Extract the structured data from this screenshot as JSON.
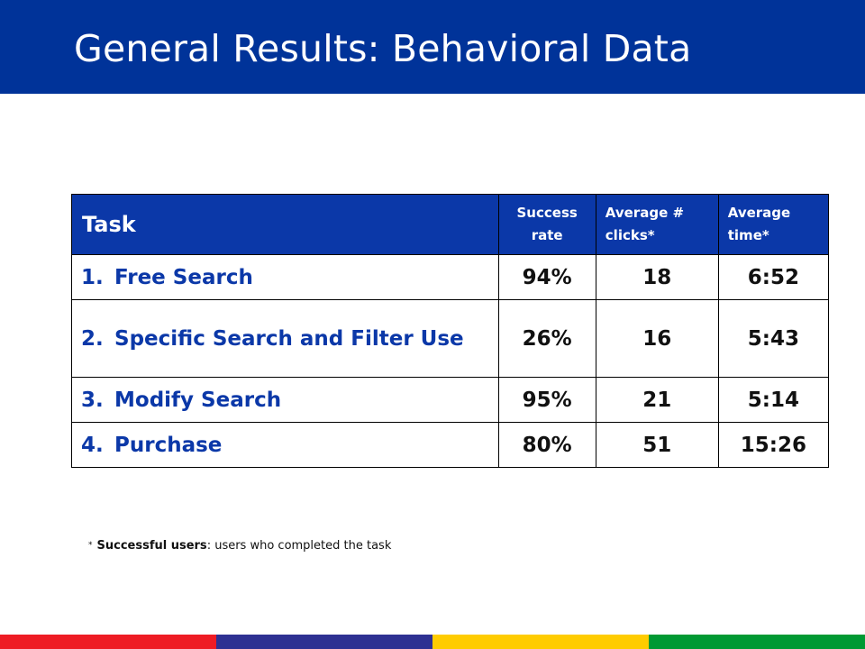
{
  "title": "General Results: Behavioral Data",
  "table": {
    "headers": {
      "task": "Task",
      "success": "Success rate",
      "clicks": "Average # clicks*",
      "time": "Average time*"
    },
    "rows": [
      {
        "num": "1.",
        "task": "Free Search",
        "success": "94%",
        "clicks": "18",
        "time": "6:52"
      },
      {
        "num": "2.",
        "task": "Specific Search and Filter Use",
        "success": "26%",
        "clicks": "16",
        "time": "5:43"
      },
      {
        "num": "3.",
        "task": "Modify Search",
        "success": "95%",
        "clicks": "21",
        "time": "5:14"
      },
      {
        "num": "4.",
        "task": "Purchase",
        "success": "80%",
        "clicks": "51",
        "time": "15:26"
      }
    ]
  },
  "footnote": {
    "star": "*",
    "term": "Successful users",
    "rest": ": users who completed the task"
  },
  "colors": {
    "header_bg": "#003399",
    "table_header_bg": "#0b38a8",
    "task_text": "#0b38a8",
    "stripes": [
      "#ee1c24",
      "#2e3192",
      "#ffcc00",
      "#009933"
    ]
  }
}
